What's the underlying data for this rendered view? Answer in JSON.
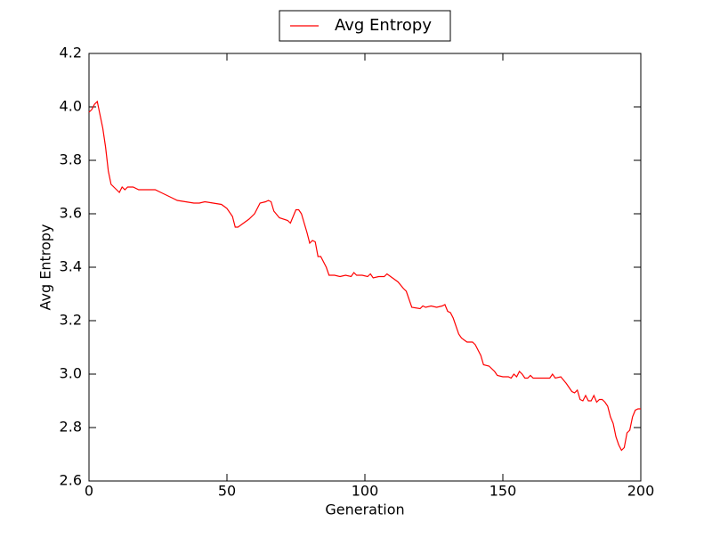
{
  "chart_data": {
    "type": "line",
    "xlabel": "Generation",
    "ylabel": "Avg Entropy",
    "legend": "upper center",
    "series": [
      {
        "name": "Avg Entropy",
        "color": "#ff0000",
        "x": [
          0,
          1,
          2,
          3,
          4,
          5,
          6,
          7,
          8,
          9,
          10,
          11,
          12,
          13,
          14,
          16,
          18,
          20,
          22,
          24,
          26,
          28,
          30,
          32,
          35,
          38,
          40,
          42,
          45,
          48,
          50,
          52,
          53,
          54,
          56,
          58,
          60,
          62,
          64,
          65,
          66,
          67,
          69,
          72,
          73,
          75,
          76,
          77,
          79,
          80,
          81,
          82,
          83,
          84,
          86,
          87,
          89,
          91,
          93,
          95,
          96,
          97,
          99,
          101,
          102,
          103,
          105,
          107,
          108,
          110,
          112,
          114,
          115,
          117,
          120,
          121,
          122,
          124,
          126,
          128,
          129,
          130,
          131,
          132,
          134,
          135,
          137,
          139,
          140,
          142,
          143,
          145,
          147,
          148,
          150,
          152,
          153,
          154,
          155,
          156,
          157,
          158,
          159,
          160,
          161,
          163,
          165,
          167,
          168,
          169,
          171,
          173,
          175,
          176,
          177,
          178,
          179,
          180,
          181,
          182,
          183,
          184,
          185,
          186,
          187,
          188,
          189,
          190,
          191,
          192,
          193,
          194,
          195,
          196,
          197,
          198,
          199,
          200
        ],
        "values": [
          3.98,
          3.99,
          4.01,
          4.02,
          3.97,
          3.92,
          3.85,
          3.76,
          3.71,
          3.7,
          3.69,
          3.68,
          3.7,
          3.69,
          3.7,
          3.7,
          3.69,
          3.69,
          3.69,
          3.69,
          3.68,
          3.67,
          3.66,
          3.65,
          3.645,
          3.64,
          3.64,
          3.645,
          3.64,
          3.635,
          3.62,
          3.59,
          3.55,
          3.55,
          3.565,
          3.58,
          3.6,
          3.64,
          3.645,
          3.65,
          3.645,
          3.61,
          3.585,
          3.575,
          3.565,
          3.615,
          3.615,
          3.6,
          3.53,
          3.49,
          3.5,
          3.495,
          3.44,
          3.44,
          3.4,
          3.37,
          3.37,
          3.365,
          3.37,
          3.365,
          3.38,
          3.37,
          3.37,
          3.365,
          3.375,
          3.36,
          3.365,
          3.365,
          3.375,
          3.36,
          3.345,
          3.32,
          3.31,
          3.25,
          3.245,
          3.255,
          3.25,
          3.255,
          3.25,
          3.255,
          3.26,
          3.235,
          3.23,
          3.21,
          3.15,
          3.135,
          3.12,
          3.12,
          3.11,
          3.07,
          3.035,
          3.03,
          3.01,
          2.995,
          2.99,
          2.99,
          2.985,
          3.0,
          2.99,
          3.01,
          3.0,
          2.985,
          2.985,
          2.995,
          2.985,
          2.985,
          2.985,
          2.985,
          3.0,
          2.985,
          2.99,
          2.965,
          2.935,
          2.93,
          2.94,
          2.905,
          2.9,
          2.92,
          2.9,
          2.9,
          2.92,
          2.895,
          2.905,
          2.905,
          2.895,
          2.88,
          2.84,
          2.815,
          2.765,
          2.735,
          2.715,
          2.725,
          2.78,
          2.79,
          2.84,
          2.865,
          2.87,
          2.87
        ]
      }
    ],
    "xlim": [
      0,
      200
    ],
    "xticks": [
      0,
      50,
      100,
      150,
      200
    ],
    "ylim": [
      2.6,
      4.2
    ],
    "yticks": [
      2.6,
      2.8,
      {
        "value": 3,
        "label": "3.0"
      },
      3.2,
      3.4,
      3.6,
      3.8,
      {
        "value": 4,
        "label": "4.0"
      },
      4.2
    ]
  }
}
